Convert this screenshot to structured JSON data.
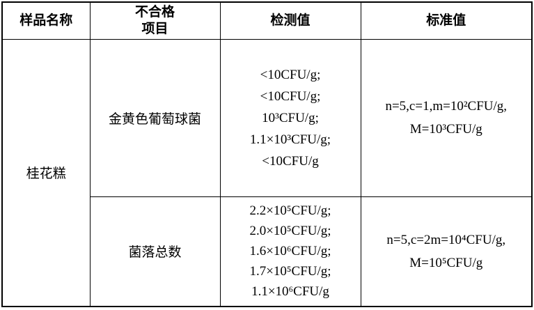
{
  "table": {
    "columns": {
      "sample": "样品名称",
      "item": [
        "不合格",
        "项目"
      ],
      "detected": "检测值",
      "standard": "标准值"
    },
    "sample_name": "桂花糕",
    "rows": [
      {
        "item": "金黄色葡萄球菌",
        "detected": [
          "<10CFU/g;",
          "<10CFU/g;",
          "10³CFU/g;",
          "1.1×10³CFU/g;",
          "<10CFU/g"
        ],
        "standard": [
          "n=5,c=1,m=10²CFU/g,",
          "M=10³CFU/g"
        ]
      },
      {
        "item": "菌落总数",
        "detected": [
          "2.2×10⁵CFU/g;",
          "2.0×10⁵CFU/g;",
          "1.6×10⁶CFU/g;",
          "1.7×10⁵CFU/g;",
          "1.1×10⁶CFU/g"
        ],
        "standard": [
          "n=5,c=2m=10⁴CFU/g,",
          "M=10⁵CFU/g"
        ]
      }
    ]
  },
  "colors": {
    "border": "#000000",
    "text": "#000000",
    "background": "#ffffff"
  }
}
